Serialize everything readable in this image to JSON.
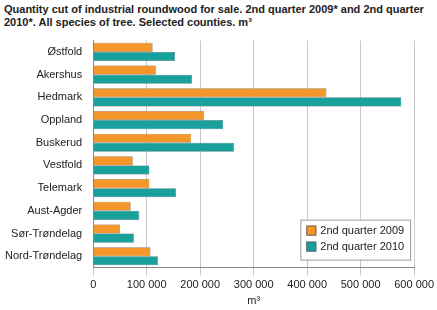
{
  "chart_data": {
    "type": "bar",
    "orientation": "horizontal",
    "title": "Quantity cut of industrial roundwood for sale. 2nd quarter 2009* and 2nd quarter 2010*. All species of tree. Selected counties. m³",
    "x_label": "m³",
    "categories": [
      "Østfold",
      "Akershus",
      "Hedmark",
      "Oppland",
      "Buskerud",
      "Vestfold",
      "Telemark",
      "Aust-Agder",
      "Sør-Trøndelag",
      "Nord-Trøndelag"
    ],
    "series": [
      {
        "name": "2nd quarter 2009",
        "color": "#f5962a",
        "values": [
          111000,
          117000,
          436000,
          207000,
          183000,
          74000,
          105000,
          70000,
          50000,
          107000
        ]
      },
      {
        "name": "2nd quarter 2010",
        "color": "#17a09c",
        "values": [
          153000,
          185000,
          576000,
          243000,
          263000,
          105000,
          155000,
          86000,
          76000,
          121000
        ]
      }
    ],
    "xlim": [
      0,
      600000
    ],
    "xticks": [
      0,
      {
        "value": 100000,
        "label": "100 000"
      },
      {
        "value": 200000,
        "label": "200 000"
      },
      {
        "value": 300000,
        "label": "300 000"
      },
      {
        "value": 400000,
        "label": "400 000"
      },
      {
        "value": 500000,
        "label": "500 000"
      },
      {
        "value": 600000,
        "label": "600 000"
      }
    ],
    "grid": true,
    "legend": "lower right"
  }
}
